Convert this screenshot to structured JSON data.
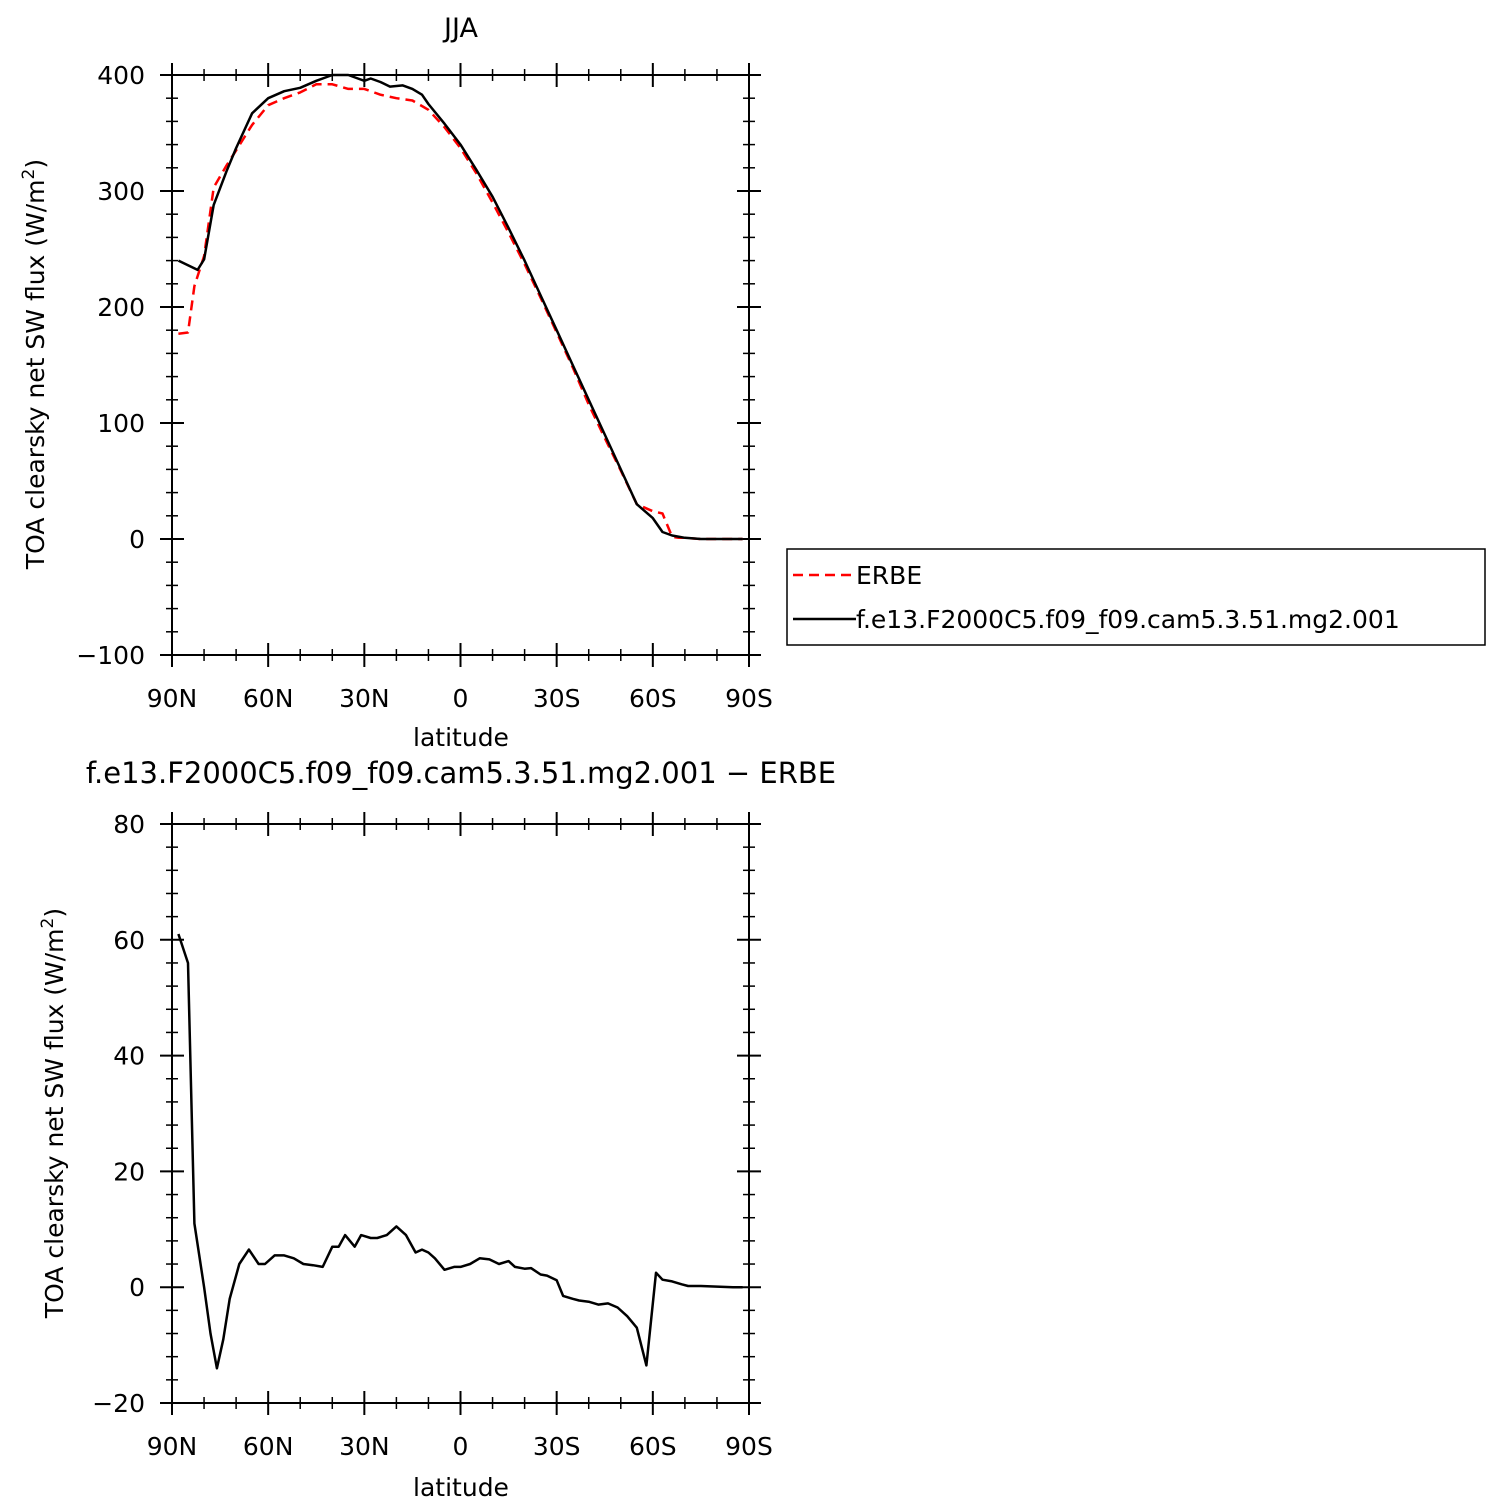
{
  "chart_data": [
    {
      "type": "line",
      "title": "JJA",
      "xlabel": "latitude",
      "ylabel_prefix": "TOA clearsky net SW flux (W/m",
      "ylabel_sup": "2",
      "ylabel_suffix": ")",
      "xlim": [
        90,
        -90
      ],
      "ylim": [
        -100,
        400
      ],
      "x_ticks": [
        90,
        60,
        30,
        0,
        -30,
        -60,
        -90
      ],
      "x_tick_labels": [
        "90N",
        "60N",
        "30N",
        "0",
        "30S",
        "60S",
        "90S"
      ],
      "y_ticks": [
        -100,
        0,
        100,
        200,
        300,
        400
      ],
      "y_tick_labels": [
        "−100",
        "0",
        "100",
        "200",
        "300",
        "400"
      ],
      "legend_position": "right",
      "series": [
        {
          "name": "ERBE",
          "color": "#ff0000",
          "dash": "dashed",
          "x": [
            88,
            85,
            83,
            80,
            77,
            73,
            70,
            65,
            60,
            55,
            50,
            45,
            40,
            35,
            30,
            25,
            20,
            15,
            10,
            5,
            0,
            -5,
            -10,
            -15,
            -20,
            -25,
            -30,
            -35,
            -40,
            -45,
            -50,
            -55,
            -60,
            -63,
            -66,
            -68,
            -70,
            -75,
            -80,
            -85,
            -88
          ],
          "y": [
            177,
            178,
            218,
            244,
            303,
            322,
            335,
            357,
            374,
            380,
            385,
            392,
            392,
            388,
            388,
            383,
            380,
            378,
            370,
            355,
            337,
            315,
            290,
            264,
            237,
            208,
            178,
            148,
            116,
            87,
            59,
            30,
            24,
            22,
            2,
            1,
            1,
            0,
            0,
            0,
            0
          ]
        },
        {
          "name": "f.e13.F2000C5.f09_f09.cam5.3.51.mg2.001",
          "color": "#000000",
          "dash": "solid",
          "x": [
            88,
            85,
            82,
            80,
            77,
            73,
            70,
            65,
            60,
            55,
            50,
            45,
            40,
            35,
            32,
            30,
            28,
            25,
            22,
            18,
            15,
            12,
            10,
            5,
            0,
            -5,
            -10,
            -15,
            -20,
            -25,
            -30,
            -35,
            -40,
            -45,
            -50,
            -55,
            -60,
            -63,
            -66,
            -70,
            -75,
            -80,
            -85,
            -88
          ],
          "y": [
            240,
            236,
            232,
            241,
            288,
            317,
            337,
            367,
            380,
            386,
            389,
            395,
            400,
            400,
            397,
            395,
            397,
            394,
            390,
            391,
            388,
            383,
            375,
            358,
            340,
            318,
            295,
            268,
            240,
            210,
            180,
            150,
            120,
            90,
            60,
            30,
            18,
            6,
            3,
            1,
            0,
            0,
            0,
            0
          ]
        }
      ]
    },
    {
      "type": "line",
      "title": "f.e13.F2000C5.f09_f09.cam5.3.51.mg2.001 − ERBE",
      "xlabel": "latitude",
      "ylabel_prefix": "TOA clearsky net SW flux (W/m",
      "ylabel_sup": "2",
      "ylabel_suffix": ")",
      "xlim": [
        90,
        -90
      ],
      "ylim": [
        -20,
        80
      ],
      "x_ticks": [
        90,
        60,
        30,
        0,
        -30,
        -60,
        -90
      ],
      "x_tick_labels": [
        "90N",
        "60N",
        "30N",
        "0",
        "30S",
        "60S",
        "90S"
      ],
      "y_ticks": [
        -20,
        0,
        20,
        40,
        60,
        80
      ],
      "y_tick_labels": [
        "−20",
        "0",
        "20",
        "40",
        "60",
        "80"
      ],
      "series": [
        {
          "color": "#000000",
          "dash": "solid",
          "x": [
            88,
            85,
            83,
            80,
            78,
            76,
            74,
            72,
            69,
            66,
            63,
            61,
            58,
            55,
            52,
            49,
            46,
            43,
            40,
            38,
            36,
            33,
            31,
            28,
            26,
            23,
            20,
            17,
            14,
            12,
            10,
            8,
            5,
            2,
            0,
            -3,
            -6,
            -9,
            -12,
            -15,
            -17,
            -20,
            -22,
            -25,
            -27,
            -30,
            -32,
            -35,
            -37,
            -40,
            -43,
            -46,
            -49,
            -52,
            -55,
            -58,
            -61,
            -63,
            -66,
            -69,
            -71,
            -75,
            -80,
            -85,
            -88
          ],
          "y": [
            61,
            56,
            11,
            0,
            -8,
            -14,
            -9,
            -2,
            4,
            6.5,
            4,
            4,
            5.5,
            5.5,
            5,
            4,
            3.8,
            3.5,
            7,
            7,
            9,
            7,
            9,
            8.5,
            8.5,
            9,
            10.5,
            9,
            6,
            6.5,
            6,
            5,
            3,
            3.5,
            3.5,
            4,
            5,
            4.8,
            4,
            4.5,
            3.5,
            3.2,
            3.3,
            2.2,
            2,
            1.2,
            -1.5,
            -2,
            -2.3,
            -2.5,
            -3,
            -2.8,
            -3.5,
            -5,
            -7,
            -13.5,
            2.5,
            1.3,
            1,
            0.5,
            0.2,
            0.2,
            0.1,
            0,
            0
          ]
        }
      ]
    }
  ]
}
